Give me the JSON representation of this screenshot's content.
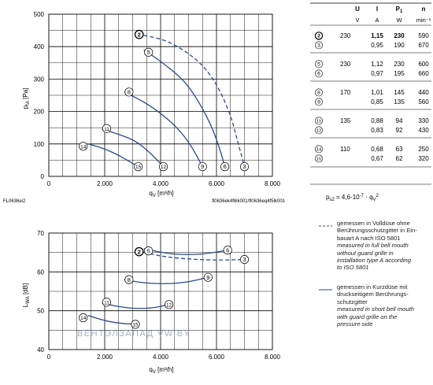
{
  "upper_chart": {
    "chart_data": {
      "type": "line",
      "ylabel": "pfA [Pa]",
      "xlabel": "qV [m³/h]",
      "xlim": [
        0,
        8000
      ],
      "ylim": [
        0,
        500
      ],
      "x_ticks": [
        "0",
        "2.000",
        "4.000",
        "6.000",
        "8.000"
      ],
      "y_ticks": [
        "0",
        "100",
        "200",
        "300",
        "400",
        "500"
      ],
      "grid": true,
      "series": [
        {
          "name": "2",
          "style": "dashed",
          "x": [
            3400,
            4200,
            5000,
            5600,
            6100,
            6500,
            6750,
            7000
          ],
          "y": [
            435,
            420,
            380,
            335,
            270,
            190,
            110,
            30
          ]
        },
        {
          "name": "3",
          "style": "solid",
          "x": [
            7000
          ],
          "y": [
            30
          ]
        },
        {
          "name": "5",
          "style": "solid",
          "x": [
            3400,
            4000,
            4800,
            5300,
            5800,
            6100,
            6300
          ],
          "y": [
            390,
            355,
            300,
            240,
            160,
            90,
            30
          ]
        },
        {
          "name": "6",
          "style": "solid",
          "x": [
            6300
          ],
          "y": [
            30
          ]
        },
        {
          "name": "8",
          "style": "solid",
          "x": [
            2700,
            3400,
            4000,
            4600,
            5100,
            5500
          ],
          "y": [
            260,
            230,
            195,
            150,
            95,
            30
          ]
        },
        {
          "name": "9",
          "style": "solid",
          "x": [
            5500
          ],
          "y": [
            30
          ]
        },
        {
          "name": "11",
          "style": "solid",
          "x": [
            1900,
            2500,
            3100,
            3600,
            4100
          ],
          "y": [
            145,
            130,
            110,
            75,
            30
          ]
        },
        {
          "name": "12",
          "style": "solid",
          "x": [
            4100
          ],
          "y": [
            30
          ]
        },
        {
          "name": "14",
          "style": "solid",
          "x": [
            1400,
            1900,
            2400,
            2900,
            3200
          ],
          "y": [
            100,
            88,
            70,
            45,
            30
          ]
        },
        {
          "name": "15",
          "style": "solid",
          "x": [
            3200
          ],
          "y": [
            30
          ]
        }
      ]
    },
    "ylabel_main": "p",
    "ylabel_sub": "fA",
    "ylabel_unit": " [Pa]",
    "xlabel_main": "q",
    "xlabel_sub": "V",
    "xlabel_unit": " [m³/h]",
    "code_left": "FL0636ei2",
    "code_right": "fl0636ek4f6lk001/fl0636eq4f5lk001"
  },
  "lower_chart": {
    "chart_data": {
      "type": "line",
      "ylabel": "LWA [dB]",
      "xlabel": "qV [m³/h]",
      "xlim": [
        0,
        8000
      ],
      "ylim": [
        40,
        70
      ],
      "x_ticks": [
        "0",
        "2.000",
        "4.000",
        "6.000",
        "8.000"
      ],
      "y_ticks": [
        "40",
        "50",
        "60",
        "70"
      ],
      "grid": true,
      "series": [
        {
          "name": "2",
          "style": "dashed",
          "x": [
            3400,
            4200,
            5200,
            6200,
            7000
          ],
          "y": [
            65,
            63.8,
            63.2,
            63.0,
            63.2
          ]
        },
        {
          "name": "3",
          "style": "solid",
          "x": [
            7000
          ],
          "y": [
            63.2
          ]
        },
        {
          "name": "5",
          "style": "solid",
          "x": [
            3400,
            4200,
            5000,
            5700,
            6400
          ],
          "y": [
            66,
            64.7,
            64.4,
            64.7,
            65.6
          ]
        },
        {
          "name": "6",
          "style": "solid",
          "x": [
            6400
          ],
          "y": [
            65.6
          ]
        },
        {
          "name": "8",
          "style": "solid",
          "x": [
            2700,
            3400,
            4300,
            5000,
            5700
          ],
          "y": [
            58,
            57.1,
            56.9,
            57.4,
            58.6
          ]
        },
        {
          "name": "9",
          "style": "solid",
          "x": [
            5700
          ],
          "y": [
            58.6
          ]
        },
        {
          "name": "11",
          "style": "solid",
          "x": [
            1900,
            2500,
            3200,
            3800,
            4300
          ],
          "y": [
            52,
            51,
            50.5,
            50.8,
            51.6
          ]
        },
        {
          "name": "12",
          "style": "solid",
          "x": [
            4300
          ],
          "y": [
            51.6
          ]
        },
        {
          "name": "14",
          "style": "solid",
          "x": [
            1400,
            2000,
            2600,
            3100
          ],
          "y": [
            48.8,
            47.4,
            46.7,
            46.5
          ]
        },
        {
          "name": "15",
          "style": "solid",
          "x": [
            3100
          ],
          "y": [
            46.5
          ]
        }
      ]
    },
    "ylabel_main": "L",
    "ylabel_sub": "WA",
    "ylabel_unit": " [dB]",
    "xlabel_main": "q",
    "xlabel_sub": "V",
    "xlabel_unit": " [m³/h]",
    "watermark": "ВЕНТЭЛЗАПАД        VW.BY"
  },
  "spec_table": {
    "headers": [
      "U",
      "I",
      "P1",
      "n"
    ],
    "units": [
      "V",
      "A",
      "W",
      "min⁻¹"
    ],
    "groups": [
      [
        {
          "curve": "2",
          "U": "230",
          "I": "1,15",
          "P": "230",
          "n": "590",
          "bold": true
        },
        {
          "curve": "3",
          "U": "",
          "I": "0,95",
          "P": "190",
          "n": "670",
          "bold": false
        }
      ],
      [
        {
          "curve": "5",
          "U": "230",
          "I": "1,12",
          "P": "230",
          "n": "600",
          "bold": false
        },
        {
          "curve": "6",
          "U": "",
          "I": "0,97",
          "P": "195",
          "n": "660",
          "bold": false
        }
      ],
      [
        {
          "curve": "8",
          "U": "170",
          "I": "1,01",
          "P": "145",
          "n": "440",
          "bold": false
        },
        {
          "curve": "9",
          "U": "",
          "I": "0,85",
          "P": "135",
          "n": "560",
          "bold": false
        }
      ],
      [
        {
          "curve": "11",
          "U": "135",
          "I": "0,88",
          "P": "94",
          "n": "330",
          "bold": false
        },
        {
          "curve": "12",
          "U": "",
          "I": "0,83",
          "P": "92",
          "n": "430",
          "bold": false
        }
      ],
      [
        {
          "curve": "14",
          "U": "110",
          "I": "0,68",
          "P": "63",
          "n": "250",
          "bold": false
        },
        {
          "curve": "15",
          "U": "",
          "I": "0,67",
          "P": "62",
          "n": "320",
          "bold": false
        }
      ]
    ],
    "formula_lhs": "p",
    "formula_lhs_sub": "s2",
    "formula_rhs": " = 4,6·10",
    "formula_exp": "-7",
    "formula_tail": " · q",
    "formula_tail_sub": "V",
    "formula_tail_exp": "2"
  },
  "legend": {
    "dashed_lines": [
      "gemessen in Volldüse ohne",
      "Berührungsschutzgitter in Ein-",
      "bauart A nach ISO 5801"
    ],
    "dashed_lines_en": [
      "measured in full bell mouth",
      "without guard grille in",
      "installation type A according",
      "to ISO 5801"
    ],
    "solid_lines": [
      "gemessen in Kurzdüse mit",
      "druckseitigem Berührungs-",
      "schutzgitter"
    ],
    "solid_lines_en": [
      "measured in short bell mouth",
      "with guard grille on the",
      "pressure side"
    ]
  },
  "colors": {
    "curve": "#2b4a8e",
    "grid": "#000000",
    "text": "#222222",
    "watermark": "#9fb4cf"
  }
}
